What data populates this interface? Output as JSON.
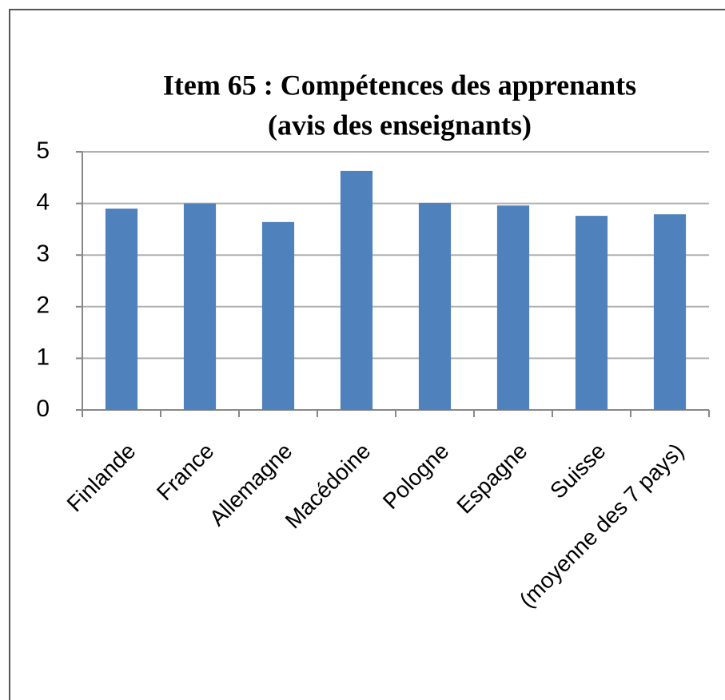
{
  "chart_data": {
    "type": "bar",
    "title": [
      "Item 65 : Compétences des apprenants",
      "(avis des enseignants)"
    ],
    "categories": [
      "Finlande",
      "France",
      "Allemagne",
      "Macédoine",
      "Pologne",
      "Espagne",
      "Suisse",
      "(moyenne des 7 pays)"
    ],
    "values": [
      3.9,
      4.0,
      3.64,
      4.63,
      4.01,
      3.96,
      3.76,
      3.79
    ],
    "color": "#4f81bd",
    "ylim": [
      0,
      5
    ],
    "yticks": [
      0,
      1,
      2,
      3,
      4,
      5
    ],
    "grid": true
  }
}
